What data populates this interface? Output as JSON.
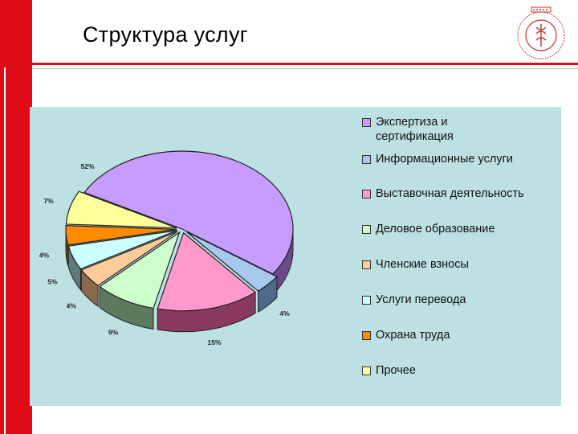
{
  "slide": {
    "title": "Структура услуг"
  },
  "chart_data": {
    "type": "pie",
    "title": "",
    "categories": [
      "Экспертиза и сертификация",
      "Информационные услуги",
      "Выставочная деятельность",
      "Деловое образование",
      "Членские взносы",
      "Услуги перевода",
      "Охрана труда",
      "Прочее"
    ],
    "legend_lines": [
      [
        "Экспертиза и",
        "сертификация"
      ],
      [
        "Информационные услуги"
      ],
      [
        "Выставочная деятельность"
      ],
      [
        "Деловое образование"
      ],
      [
        "Членские взносы"
      ],
      [
        "Услуги перевода"
      ],
      [
        "Охрана труда"
      ],
      [
        "Прочее"
      ]
    ],
    "values": [
      52,
      4,
      15,
      9,
      4,
      5,
      4,
      7
    ],
    "labels": [
      "52%",
      "4%",
      "15%",
      "9%",
      "4%",
      "5%",
      "4%",
      "7%"
    ],
    "colors": [
      "#c79cff",
      "#a8c8ee",
      "#ff99cc",
      "#ccffcc",
      "#ffcc99",
      "#ccffff",
      "#ff8c00",
      "#ffff99"
    ],
    "side_colors": [
      "#6a4a8a",
      "#4e6a8a",
      "#8a3a5e",
      "#5e7a5e",
      "#8a6a4a",
      "#5e7a7a",
      "#7a4200",
      "#7a7a4a"
    ],
    "legend_position": "right",
    "style": "3d-exploded"
  }
}
